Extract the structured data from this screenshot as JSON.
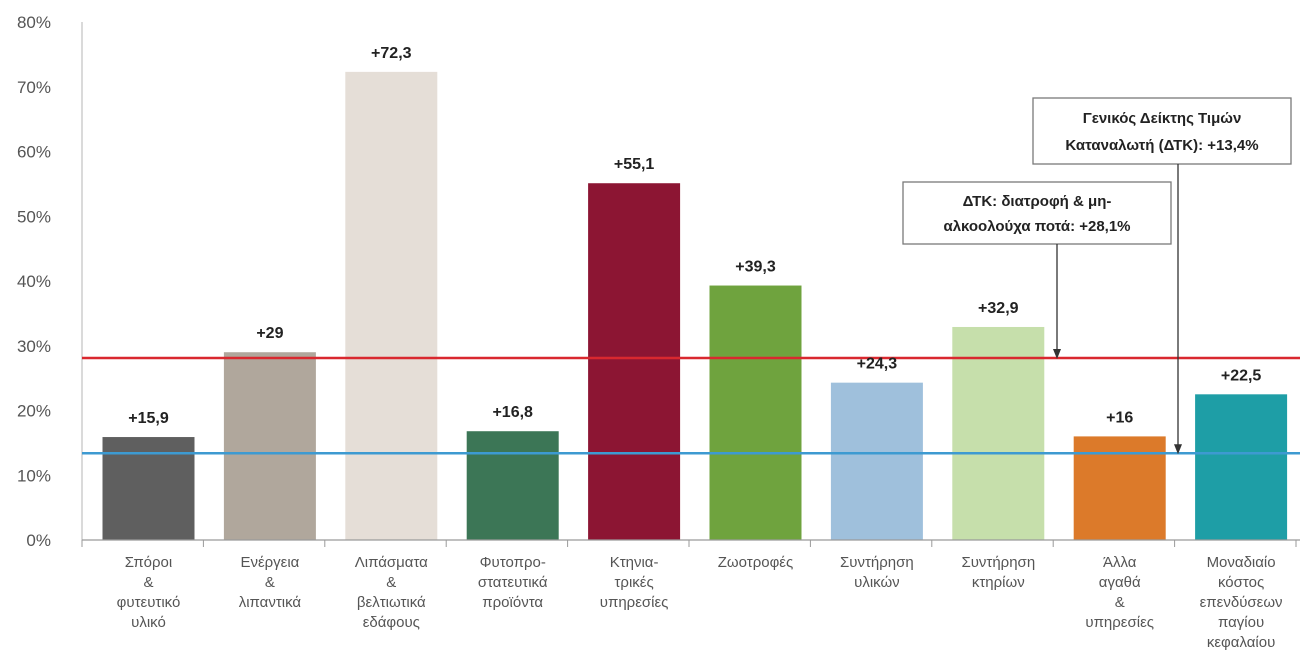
{
  "chart_data": {
    "type": "bar",
    "title": "",
    "xlabel": "",
    "ylabel": "",
    "ylim": [
      0,
      80
    ],
    "yticks": [
      "0%",
      "10%",
      "20%",
      "30%",
      "40%",
      "50%",
      "60%",
      "70%",
      "80%"
    ],
    "categories": [
      [
        "Σπόροι",
        "&",
        "φυτευτικό",
        "υλικό"
      ],
      [
        "Ενέργεια",
        "&",
        "λιπαντικά"
      ],
      [
        "Λιπάσματα",
        "&",
        "βελτιωτικά",
        "εδάφους"
      ],
      [
        "Φυτοπρο-",
        "στατευτικά",
        "προϊόντα"
      ],
      [
        "Κτηνια-",
        "τρικές",
        "υπηρεσίες"
      ],
      [
        "Ζωοτροφές"
      ],
      [
        "Συντήρηση",
        "υλικών"
      ],
      [
        "Συντήρηση",
        "κτηρίων"
      ],
      [
        "Άλλα",
        "αγαθά",
        "&",
        "υπηρεσίες"
      ],
      [
        "Μοναδιαίο",
        "κόστος",
        "επενδύσεων",
        "παγίου",
        "κεφαλαίου"
      ]
    ],
    "values": [
      15.9,
      29,
      72.3,
      16.8,
      55.1,
      39.3,
      24.3,
      32.9,
      16,
      22.5
    ],
    "value_labels": [
      "+15,9",
      "+29",
      "+72,3",
      "+16,8",
      "+55,1",
      "+39,3",
      "+24,3",
      "+32,9",
      "+16",
      "+22,5"
    ],
    "colors": [
      "#5f5f5f",
      "#b0a79c",
      "#e5ded7",
      "#3c7656",
      "#8c1533",
      "#6fa33e",
      "#9fc0dc",
      "#c6dfab",
      "#dc7a2a",
      "#1e9ea6"
    ],
    "reference_lines": [
      {
        "value": 28.1,
        "color": "#d9282f",
        "label": [
          "ΔΤΚ: διατροφή & μη-",
          "αλκοολούχα ποτά: +28,1%"
        ]
      },
      {
        "value": 13.4,
        "color": "#3d9ad1",
        "label": [
          "Γενικός Δείκτης Τιμών",
          "Καταναλωτή (ΔΤΚ): +13,4%"
        ]
      }
    ],
    "grid": false,
    "legend": "none"
  }
}
